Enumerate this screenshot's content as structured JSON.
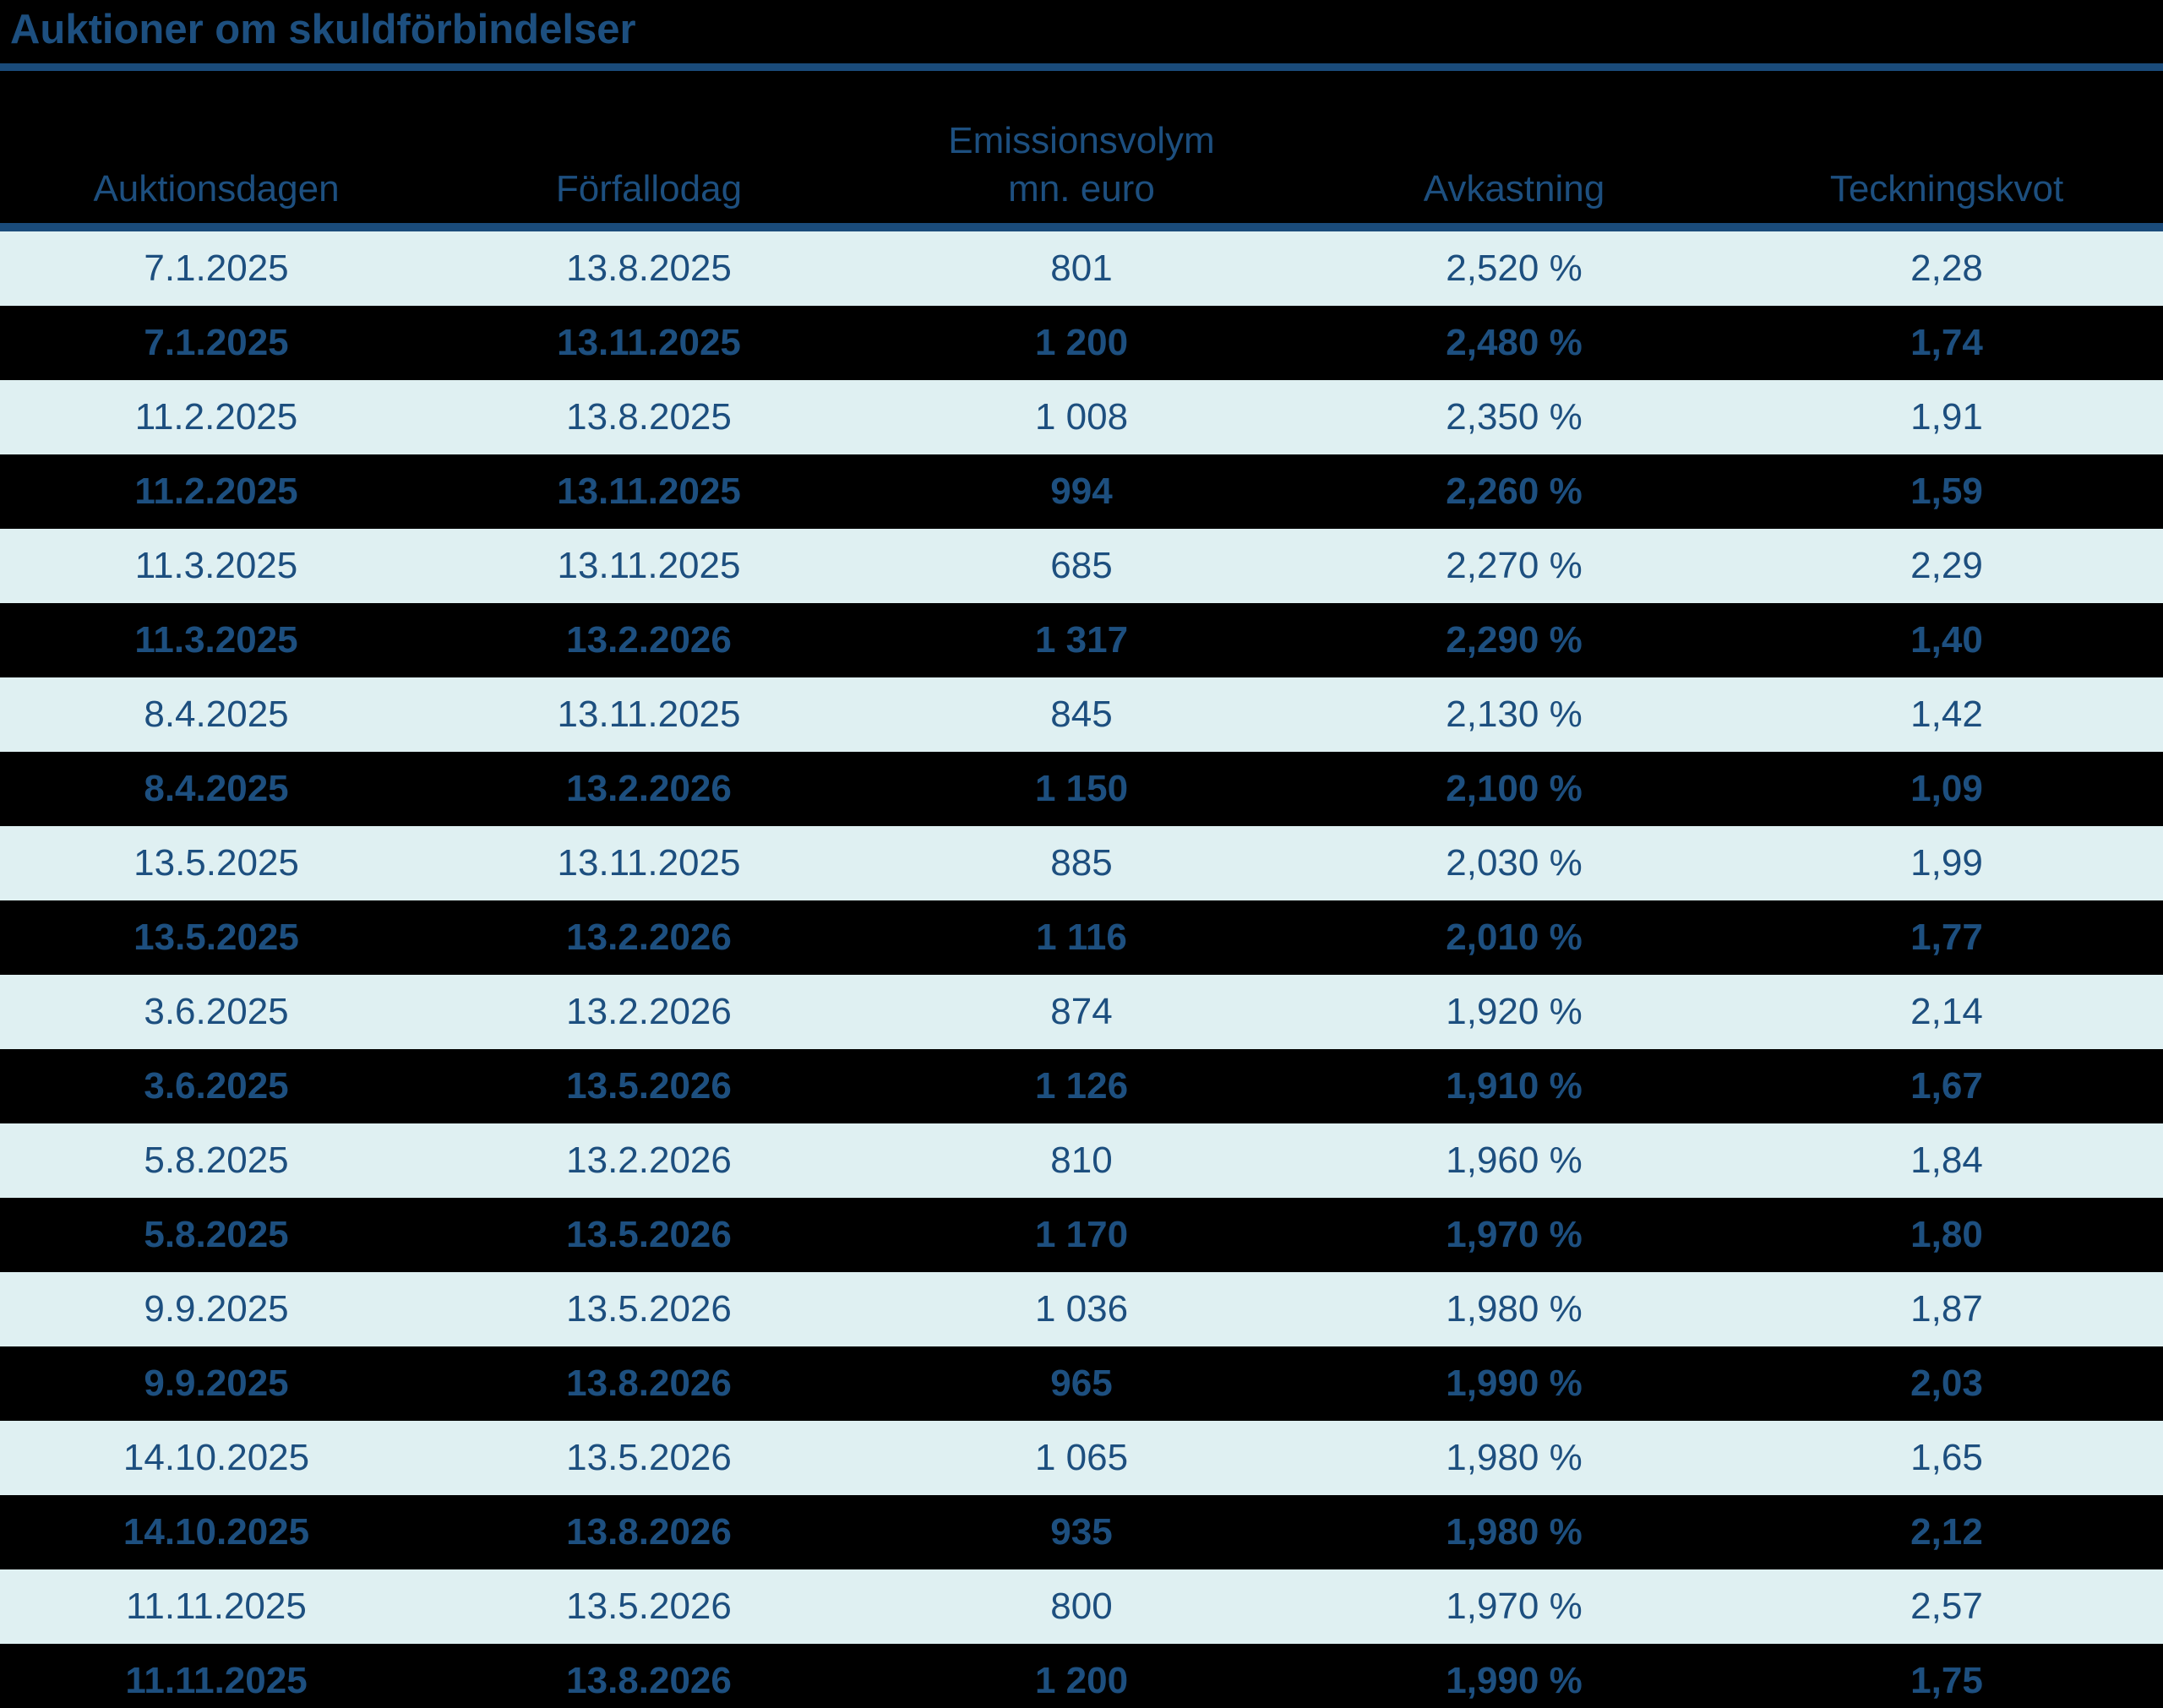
{
  "title": "Auktioner om skuldförbindelser",
  "colors": {
    "navy_text": "#1D4F7F",
    "rule": "#1A4B7A",
    "light_row_bg": "#DFF0F2",
    "dark_row_bg": "#000000"
  },
  "table": {
    "columns": [
      {
        "line1": "Auktionsdagen",
        "line2": ""
      },
      {
        "line1": "Förfallodag",
        "line2": ""
      },
      {
        "line1": "Emissionsvolym",
        "line2": "mn. euro"
      },
      {
        "line1": "Avkastning",
        "line2": ""
      },
      {
        "line1": "Teckningskvot",
        "line2": ""
      }
    ],
    "rows": [
      [
        "7.1.2025",
        "13.8.2025",
        "801",
        "2,520 %",
        "2,28"
      ],
      [
        "7.1.2025",
        "13.11.2025",
        "1 200",
        "2,480 %",
        "1,74"
      ],
      [
        "11.2.2025",
        "13.8.2025",
        "1 008",
        "2,350 %",
        "1,91"
      ],
      [
        "11.2.2025",
        "13.11.2025",
        "994",
        "2,260 %",
        "1,59"
      ],
      [
        "11.3.2025",
        "13.11.2025",
        "685",
        "2,270 %",
        "2,29"
      ],
      [
        "11.3.2025",
        "13.2.2026",
        "1 317",
        "2,290 %",
        "1,40"
      ],
      [
        "8.4.2025",
        "13.11.2025",
        "845",
        "2,130 %",
        "1,42"
      ],
      [
        "8.4.2025",
        "13.2.2026",
        "1 150",
        "2,100 %",
        "1,09"
      ],
      [
        "13.5.2025",
        "13.11.2025",
        "885",
        "2,030 %",
        "1,99"
      ],
      [
        "13.5.2025",
        "13.2.2026",
        "1 116",
        "2,010 %",
        "1,77"
      ],
      [
        "3.6.2025",
        "13.2.2026",
        "874",
        "1,920 %",
        "2,14"
      ],
      [
        "3.6.2025",
        "13.5.2026",
        "1 126",
        "1,910 %",
        "1,67"
      ],
      [
        "5.8.2025",
        "13.2.2026",
        "810",
        "1,960 %",
        "1,84"
      ],
      [
        "5.8.2025",
        "13.5.2026",
        "1 170",
        "1,970 %",
        "1,80"
      ],
      [
        "9.9.2025",
        "13.5.2026",
        "1 036",
        "1,980 %",
        "1,87"
      ],
      [
        "9.9.2025",
        "13.8.2026",
        "965",
        "1,990 %",
        "2,03"
      ],
      [
        "14.10.2025",
        "13.5.2026",
        "1 065",
        "1,980 %",
        "1,65"
      ],
      [
        "14.10.2025",
        "13.8.2026",
        "935",
        "1,980 %",
        "2,12"
      ],
      [
        "11.11.2025",
        "13.5.2026",
        "800",
        "1,970 %",
        "2,57"
      ],
      [
        "11.11.2025",
        "13.8.2026",
        "1 200",
        "1,990 %",
        "1,75"
      ]
    ]
  },
  "chart_data": {
    "type": "table",
    "title": "Auktioner om skuldförbindelser",
    "columns": [
      "Auktionsdagen",
      "Förfallodag",
      "Emissionsvolym mn. euro",
      "Avkastning",
      "Teckningskvot"
    ],
    "rows": [
      [
        "7.1.2025",
        "13.8.2025",
        801,
        "2,520 %",
        "2,28"
      ],
      [
        "7.1.2025",
        "13.11.2025",
        1200,
        "2,480 %",
        "1,74"
      ],
      [
        "11.2.2025",
        "13.8.2025",
        1008,
        "2,350 %",
        "1,91"
      ],
      [
        "11.2.2025",
        "13.11.2025",
        994,
        "2,260 %",
        "1,59"
      ],
      [
        "11.3.2025",
        "13.11.2025",
        685,
        "2,270 %",
        "2,29"
      ],
      [
        "11.3.2025",
        "13.2.2026",
        1317,
        "2,290 %",
        "1,40"
      ],
      [
        "8.4.2025",
        "13.11.2025",
        845,
        "2,130 %",
        "1,42"
      ],
      [
        "8.4.2025",
        "13.2.2026",
        1150,
        "2,100 %",
        "1,09"
      ],
      [
        "13.5.2025",
        "13.11.2025",
        885,
        "2,030 %",
        "1,99"
      ],
      [
        "13.5.2025",
        "13.2.2026",
        1116,
        "2,010 %",
        "1,77"
      ],
      [
        "3.6.2025",
        "13.2.2026",
        874,
        "1,920 %",
        "2,14"
      ],
      [
        "3.6.2025",
        "13.5.2026",
        1126,
        "1,910 %",
        "1,67"
      ],
      [
        "5.8.2025",
        "13.2.2026",
        810,
        "1,960 %",
        "1,84"
      ],
      [
        "5.8.2025",
        "13.5.2026",
        1170,
        "1,970 %",
        "1,80"
      ],
      [
        "9.9.2025",
        "13.5.2026",
        1036,
        "1,980 %",
        "1,87"
      ],
      [
        "9.9.2025",
        "13.8.2026",
        965,
        "1,990 %",
        "2,03"
      ],
      [
        "14.10.2025",
        "13.5.2026",
        1065,
        "1,980 %",
        "1,65"
      ],
      [
        "14.10.2025",
        "13.8.2026",
        935,
        "1,980 %",
        "2,12"
      ],
      [
        "11.11.2025",
        "13.5.2026",
        800,
        "1,970 %",
        "2,57"
      ],
      [
        "11.11.2025",
        "13.8.2026",
        1200,
        "1,990 %",
        "1,75"
      ]
    ]
  }
}
